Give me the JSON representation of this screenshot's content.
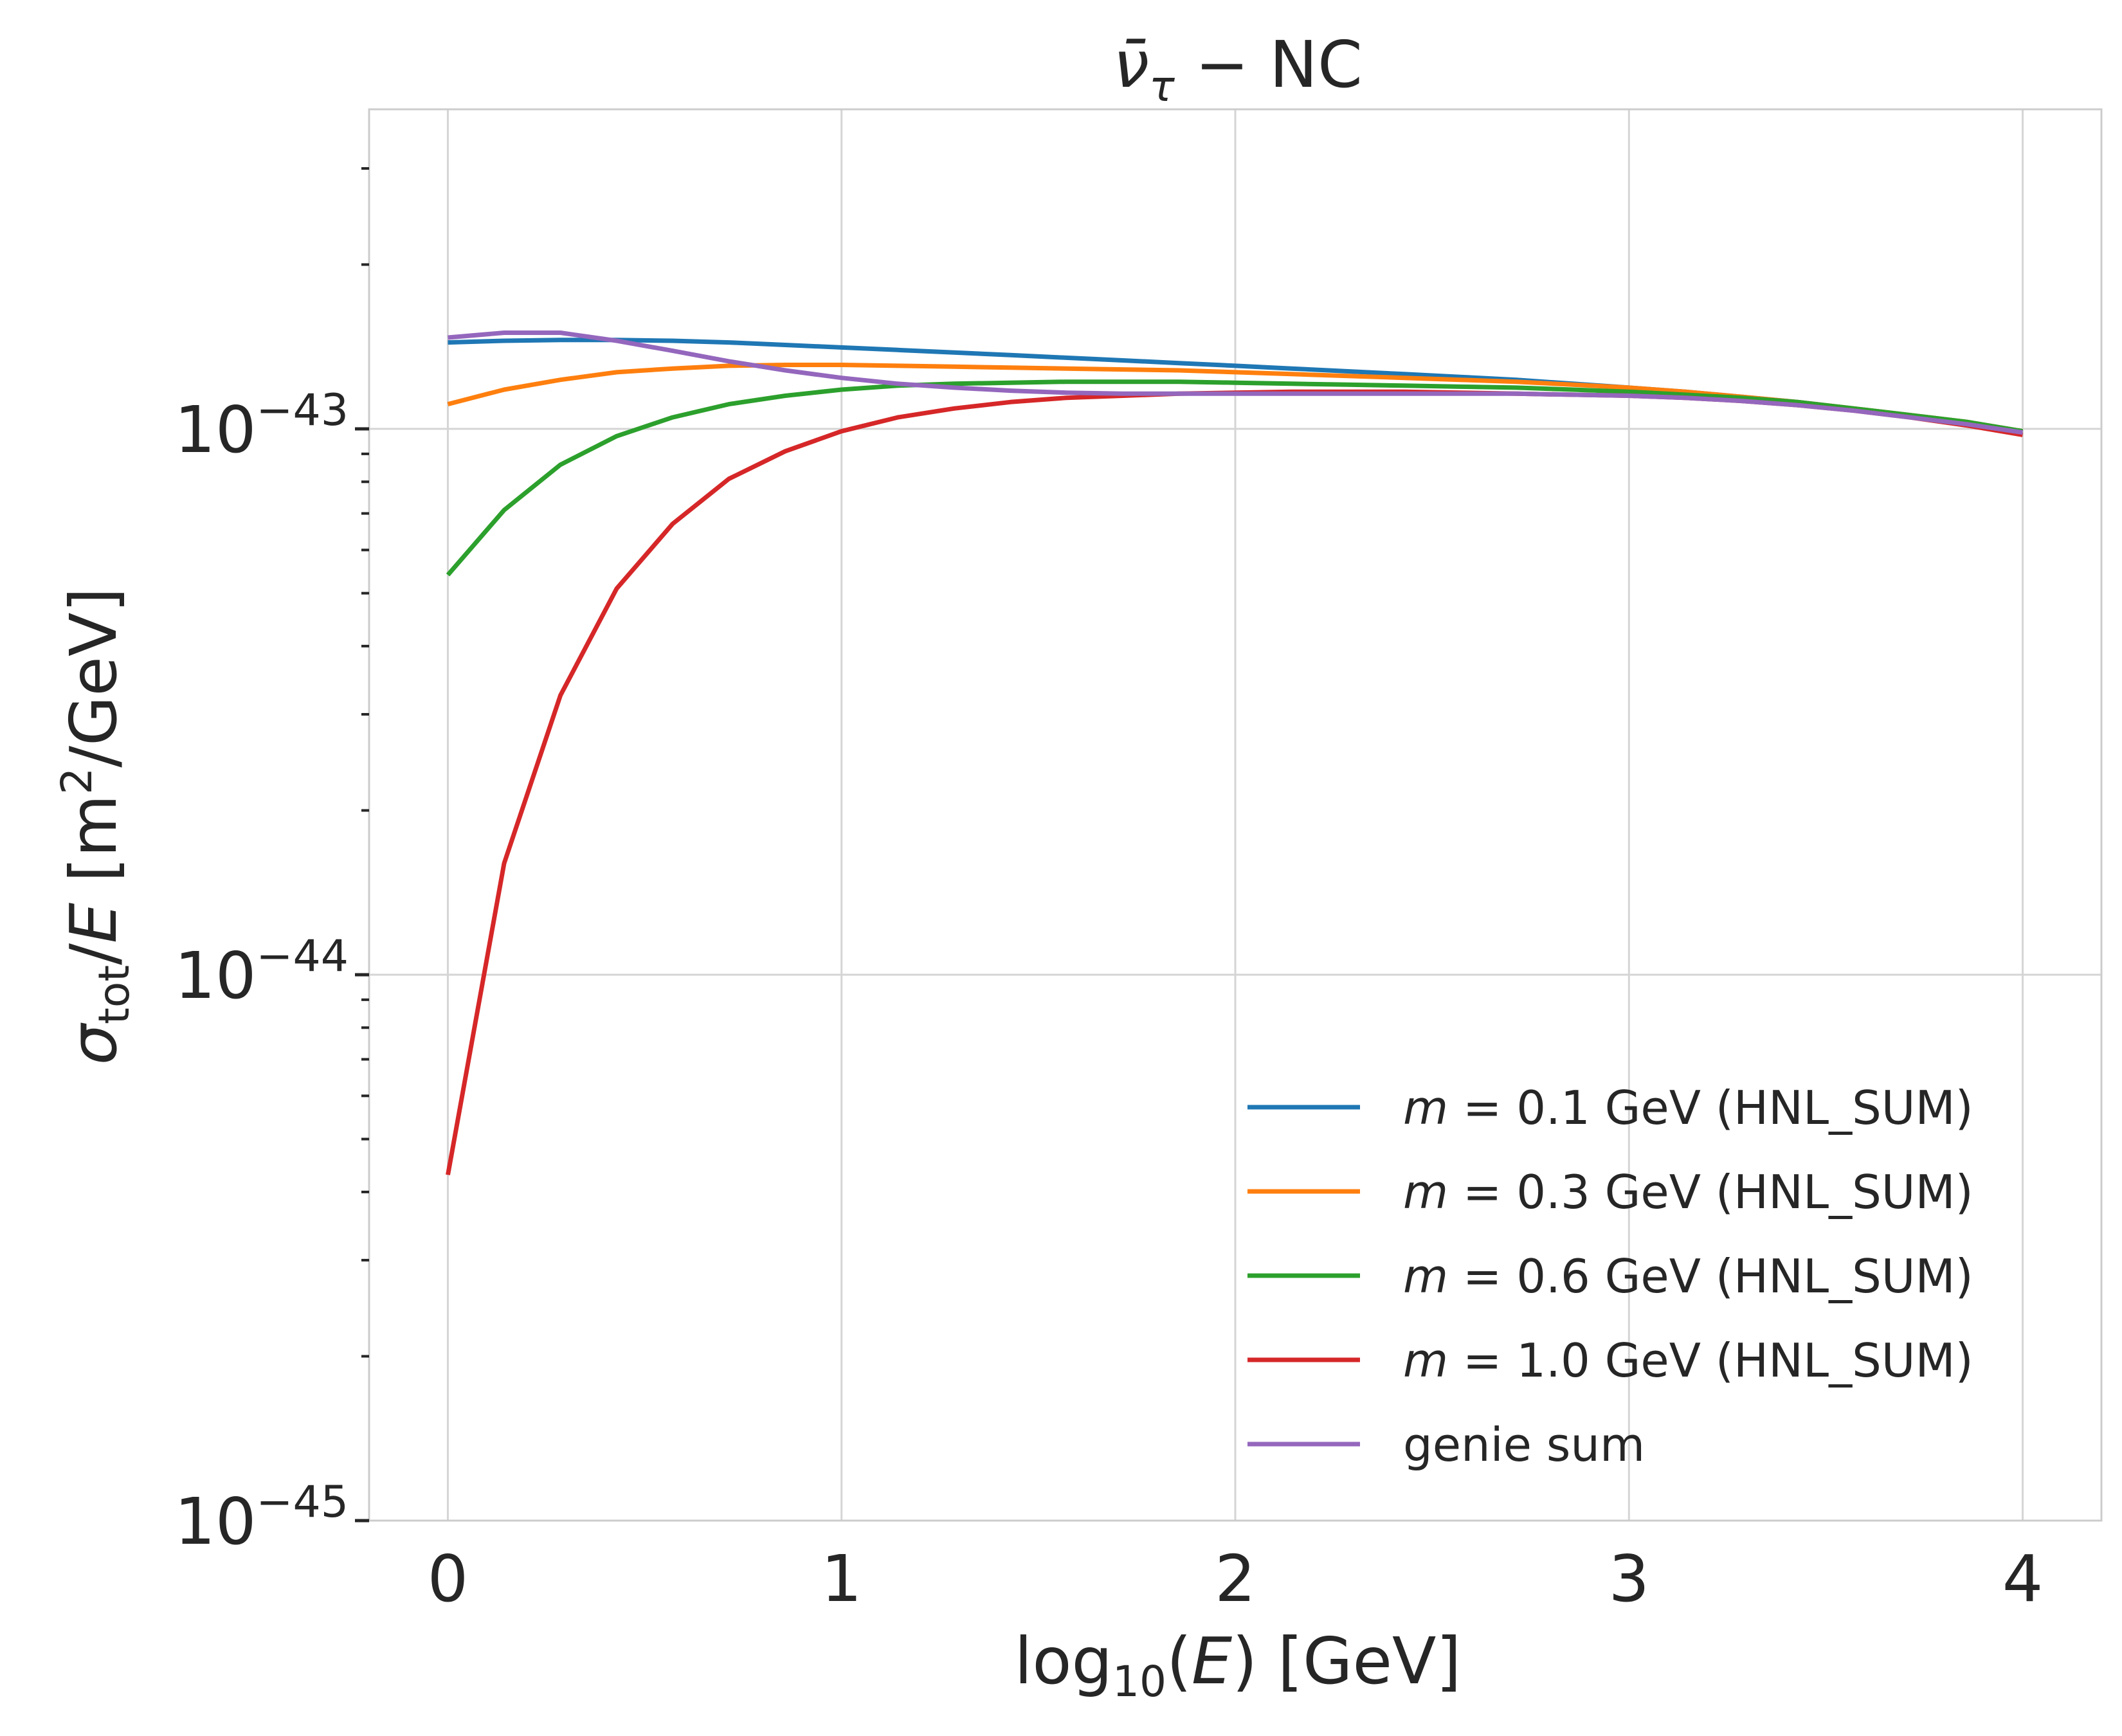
{
  "chart_data": {
    "type": "line",
    "title": "ν̄τ − NC",
    "title_parts": {
      "base": "ν̄",
      "sub": "τ",
      "rest": " − NC"
    },
    "xlabel": "log10(E) [GeV]",
    "xlabel_parts": {
      "pre": "log",
      "sub": "10",
      "mid": "(",
      "italic": "E",
      "post": ") [GeV]"
    },
    "ylabel": "σtot/E [m²/GeV]",
    "ylabel_parts": {
      "sigma": "σ",
      "sub": "tot",
      "slash": "/",
      "italic": "E",
      "unit_pre": " [m",
      "sup": "2",
      "unit_post": "/GeV]"
    },
    "xlim": [
      -0.2,
      4.2
    ],
    "ylim": [
      1e-45,
      3.85e-43
    ],
    "yscale": "log",
    "grid": true,
    "legend_position": "lower-right",
    "x_ticks": [
      "0",
      "1",
      "2",
      "3",
      "4"
    ],
    "y_ticks": [
      {
        "value": 1e-45,
        "base": "10",
        "exp": "−45"
      },
      {
        "value": 1e-44,
        "base": "10",
        "exp": "−44"
      },
      {
        "value": 1e-43,
        "base": "10",
        "exp": "−43"
      }
    ],
    "x": [
      0,
      0.143,
      0.286,
      0.429,
      0.571,
      0.714,
      0.857,
      1.0,
      1.143,
      1.286,
      1.429,
      1.571,
      1.714,
      1.857,
      2.0,
      2.143,
      2.286,
      2.429,
      2.571,
      2.714,
      2.857,
      3.0,
      3.143,
      3.286,
      3.429,
      3.571,
      3.714,
      3.857,
      4.0
    ],
    "series": [
      {
        "name": "m = 0.1 GeV (HNL_SUM)",
        "name_parts": {
          "m": "m",
          "eq": " = 0.1 ",
          "rest": "GeV (HNL_SUM)"
        },
        "color": "#1f77b4",
        "values": [
          1.44e-43,
          1.45e-43,
          1.455e-43,
          1.455e-43,
          1.45e-43,
          1.44e-43,
          1.425e-43,
          1.41e-43,
          1.395e-43,
          1.38e-43,
          1.365e-43,
          1.35e-43,
          1.335e-43,
          1.32e-43,
          1.305e-43,
          1.29e-43,
          1.275e-43,
          1.26e-43,
          1.245e-43,
          1.23e-43,
          1.21e-43,
          1.19e-43,
          1.17e-43,
          1.145e-43,
          1.12e-43,
          1.09e-43,
          1.06e-43,
          1.03e-43,
          9.9e-44
        ]
      },
      {
        "name": "m = 0.3 GeV (HNL_SUM)",
        "name_parts": {
          "m": "m",
          "eq": " = 0.3 ",
          "rest": "GeV (HNL_SUM)"
        },
        "color": "#ff7f0e",
        "values": [
          1.11e-43,
          1.18e-43,
          1.23e-43,
          1.27e-43,
          1.29e-43,
          1.305e-43,
          1.31e-43,
          1.31e-43,
          1.305e-43,
          1.3e-43,
          1.295e-43,
          1.29e-43,
          1.285e-43,
          1.28e-43,
          1.27e-43,
          1.26e-43,
          1.25e-43,
          1.24e-43,
          1.23e-43,
          1.22e-43,
          1.205e-43,
          1.19e-43,
          1.17e-43,
          1.145e-43,
          1.12e-43,
          1.09e-43,
          1.06e-43,
          1.03e-43,
          9.9e-44
        ]
      },
      {
        "name": "m = 0.6 GeV (HNL_SUM)",
        "name_parts": {
          "m": "m",
          "eq": " = 0.6 ",
          "rest": "GeV (HNL_SUM)"
        },
        "color": "#2ca02c",
        "values": [
          5.4e-44,
          7.1e-44,
          8.6e-44,
          9.7e-44,
          1.05e-43,
          1.11e-43,
          1.15e-43,
          1.18e-43,
          1.2e-43,
          1.21e-43,
          1.215e-43,
          1.22e-43,
          1.22e-43,
          1.22e-43,
          1.215e-43,
          1.21e-43,
          1.205e-43,
          1.2e-43,
          1.195e-43,
          1.19e-43,
          1.18e-43,
          1.17e-43,
          1.155e-43,
          1.14e-43,
          1.12e-43,
          1.09e-43,
          1.06e-43,
          1.03e-43,
          9.9e-44
        ]
      },
      {
        "name": "m = 1.0 GeV (HNL_SUM)",
        "name_parts": {
          "m": "m",
          "eq": " = 1.0 ",
          "rest": "GeV (HNL_SUM)"
        },
        "color": "#d62728",
        "values": [
          4.3e-45,
          1.6e-44,
          3.25e-44,
          5.1e-44,
          6.7e-44,
          8.1e-44,
          9.1e-44,
          9.9e-44,
          1.05e-43,
          1.09e-43,
          1.12e-43,
          1.14e-43,
          1.15e-43,
          1.16e-43,
          1.165e-43,
          1.17e-43,
          1.17e-43,
          1.17e-43,
          1.165e-43,
          1.16e-43,
          1.155e-43,
          1.15e-43,
          1.14e-43,
          1.125e-43,
          1.105e-43,
          1.08e-43,
          1.05e-43,
          1.015e-43,
          9.75e-44
        ]
      },
      {
        "name": "genie sum",
        "color": "#9467bd",
        "values": [
          1.47e-43,
          1.5e-43,
          1.5e-43,
          1.45e-43,
          1.39e-43,
          1.33e-43,
          1.28e-43,
          1.24e-43,
          1.21e-43,
          1.19e-43,
          1.175e-43,
          1.165e-43,
          1.16e-43,
          1.16e-43,
          1.16e-43,
          1.16e-43,
          1.16e-43,
          1.16e-43,
          1.16e-43,
          1.16e-43,
          1.155e-43,
          1.15e-43,
          1.14e-43,
          1.125e-43,
          1.105e-43,
          1.08e-43,
          1.05e-43,
          1.02e-43,
          9.85e-44
        ]
      }
    ]
  }
}
